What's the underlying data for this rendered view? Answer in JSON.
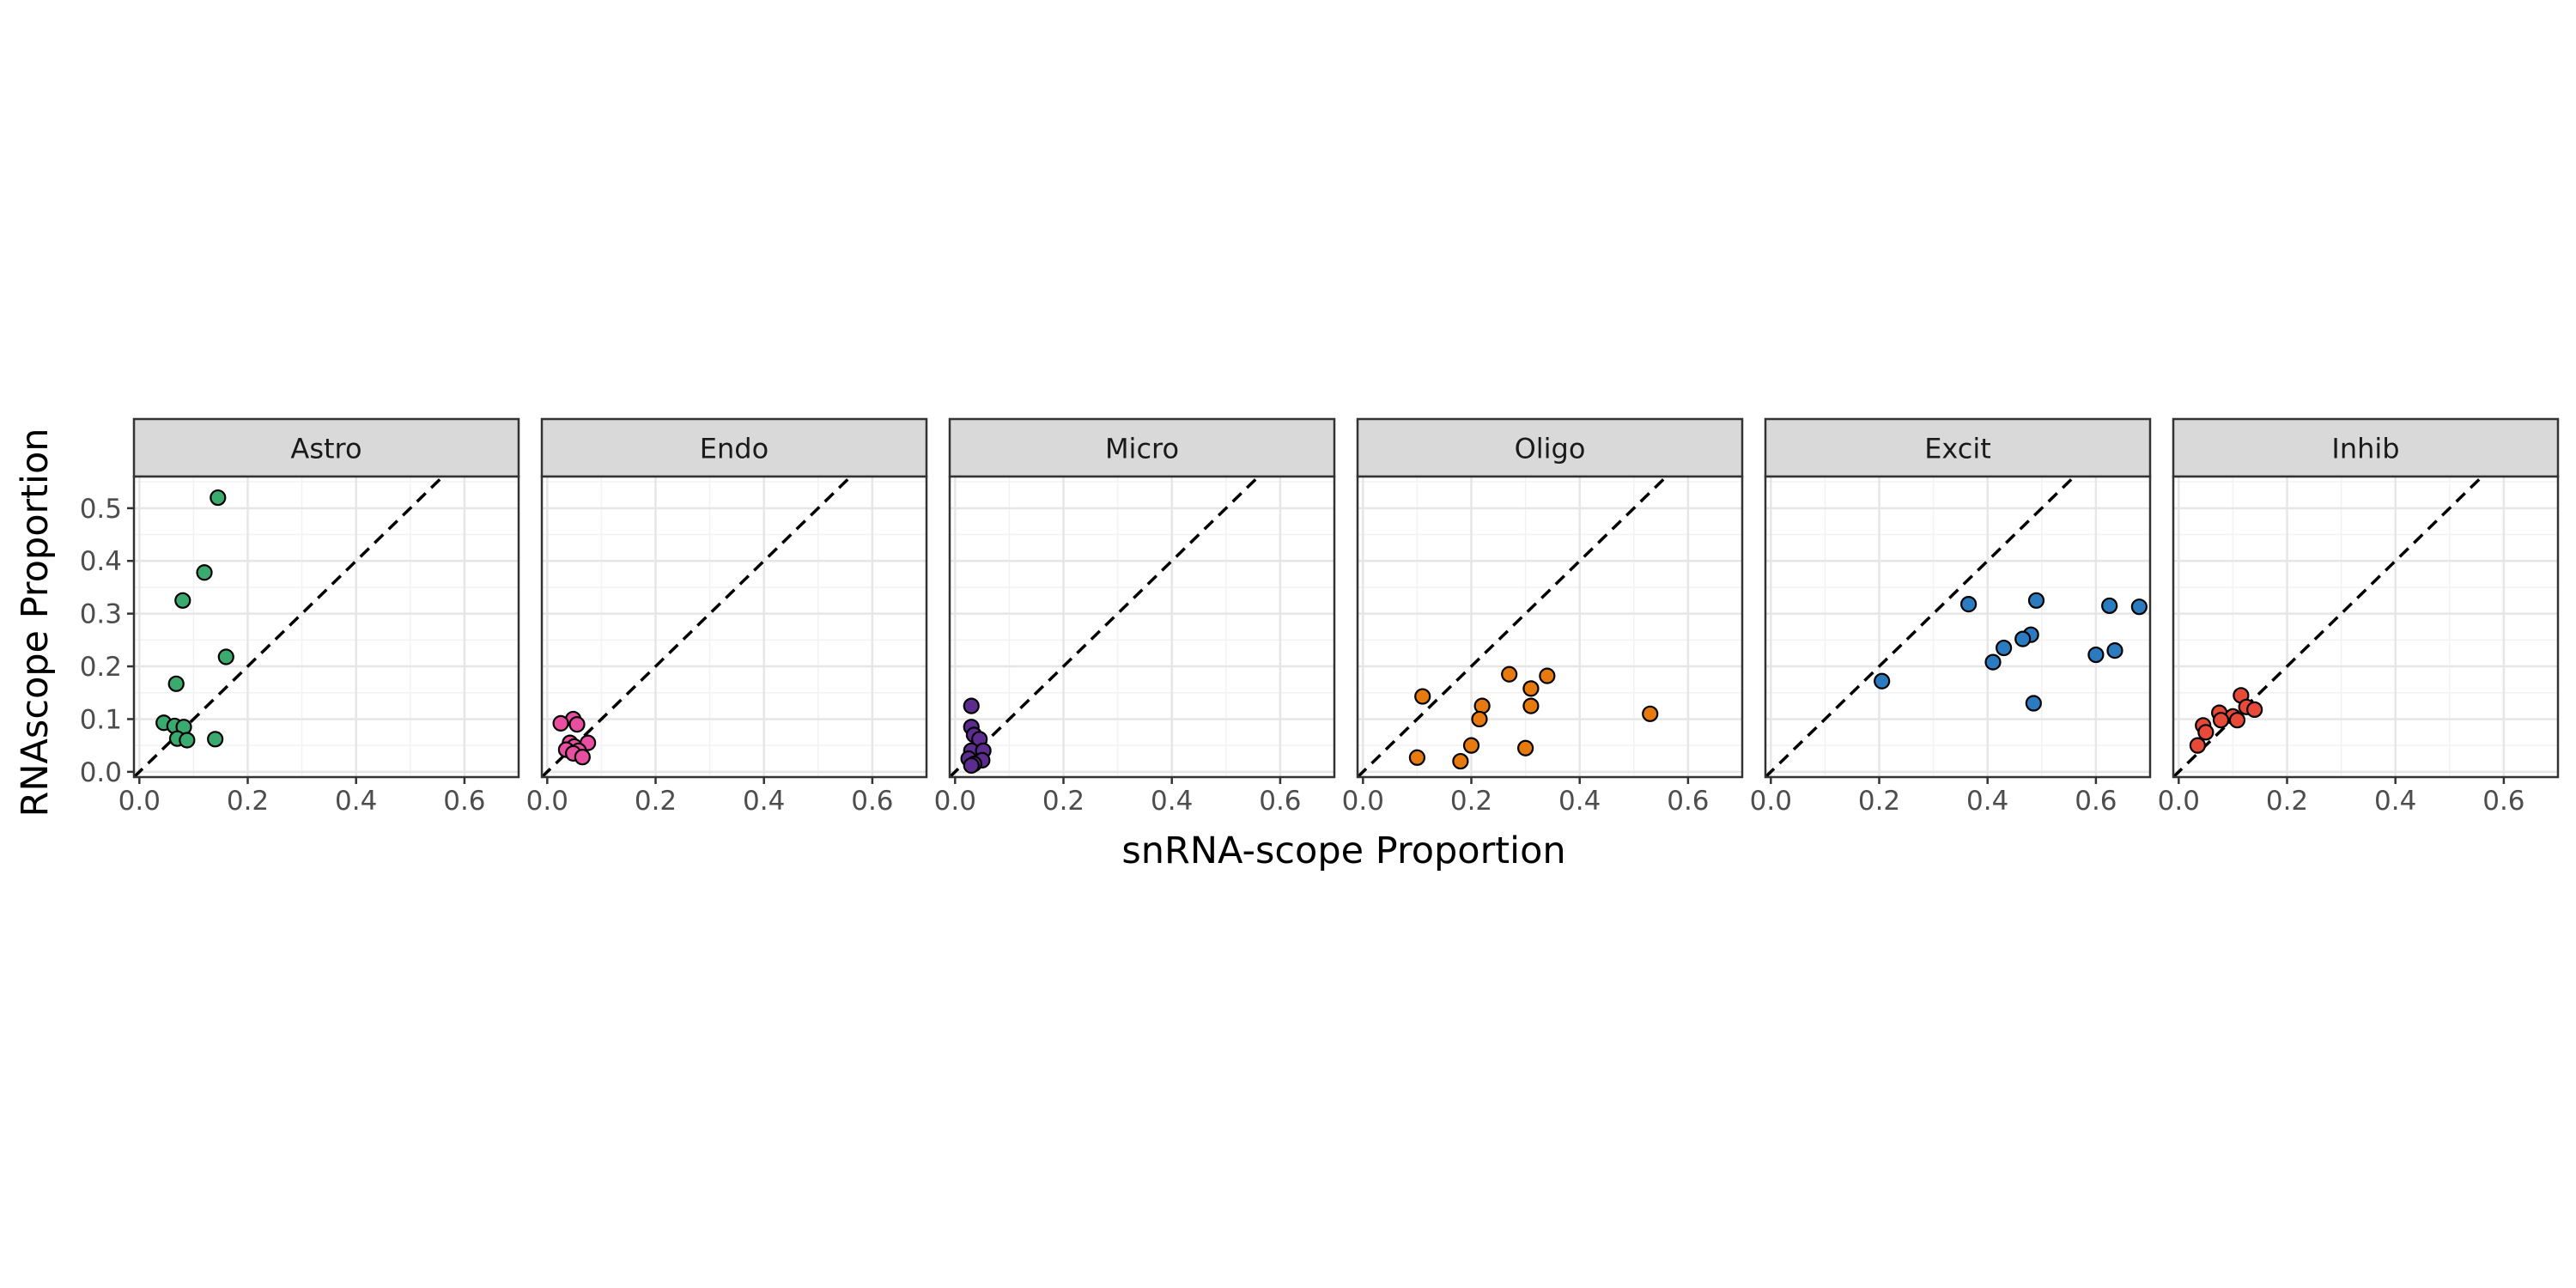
{
  "chart_data": {
    "type": "scatter",
    "xlabel": "snRNA-scope Proportion",
    "ylabel": "RNAscope Proportion",
    "xlim": [
      -0.01,
      0.7
    ],
    "ylim": [
      -0.01,
      0.56
    ],
    "x_ticks": [
      0.0,
      0.2,
      0.4,
      0.6
    ],
    "x_tick_labels": [
      "0.0",
      "0.2",
      "0.4",
      "0.6"
    ],
    "y_ticks": [
      0.0,
      0.1,
      0.2,
      0.3,
      0.4,
      0.5
    ],
    "y_tick_labels": [
      "0.0",
      "0.1",
      "0.2",
      "0.3",
      "0.4",
      "0.5"
    ],
    "grid": true,
    "reference_line": "y = x (dashed)",
    "panels": [
      {
        "name": "Astro",
        "color": "#3aaa6e",
        "points": [
          [
            0.145,
            0.52
          ],
          [
            0.12,
            0.378
          ],
          [
            0.08,
            0.325
          ],
          [
            0.16,
            0.218
          ],
          [
            0.068,
            0.167
          ],
          [
            0.045,
            0.093
          ],
          [
            0.065,
            0.087
          ],
          [
            0.082,
            0.085
          ],
          [
            0.07,
            0.063
          ],
          [
            0.088,
            0.06
          ],
          [
            0.14,
            0.062
          ]
        ]
      },
      {
        "name": "Endo",
        "color": "#e84fa0",
        "points": [
          [
            0.048,
            0.1
          ],
          [
            0.025,
            0.092
          ],
          [
            0.055,
            0.09
          ],
          [
            0.042,
            0.055
          ],
          [
            0.05,
            0.048
          ],
          [
            0.075,
            0.055
          ],
          [
            0.035,
            0.042
          ],
          [
            0.058,
            0.04
          ],
          [
            0.048,
            0.035
          ],
          [
            0.065,
            0.028
          ]
        ]
      },
      {
        "name": "Micro",
        "color": "#5c2c8f",
        "points": [
          [
            0.03,
            0.125
          ],
          [
            0.03,
            0.085
          ],
          [
            0.035,
            0.07
          ],
          [
            0.045,
            0.062
          ],
          [
            0.03,
            0.04
          ],
          [
            0.052,
            0.04
          ],
          [
            0.025,
            0.025
          ],
          [
            0.05,
            0.022
          ],
          [
            0.035,
            0.015
          ],
          [
            0.03,
            0.012
          ]
        ]
      },
      {
        "name": "Oligo",
        "color": "#e67a0f",
        "points": [
          [
            0.11,
            0.143
          ],
          [
            0.27,
            0.185
          ],
          [
            0.34,
            0.182
          ],
          [
            0.31,
            0.158
          ],
          [
            0.22,
            0.125
          ],
          [
            0.31,
            0.125
          ],
          [
            0.53,
            0.11
          ],
          [
            0.215,
            0.1
          ],
          [
            0.2,
            0.05
          ],
          [
            0.3,
            0.045
          ],
          [
            0.1,
            0.027
          ],
          [
            0.18,
            0.02
          ]
        ]
      },
      {
        "name": "Excit",
        "color": "#2a7bbf",
        "points": [
          [
            0.205,
            0.172
          ],
          [
            0.365,
            0.318
          ],
          [
            0.49,
            0.325
          ],
          [
            0.625,
            0.315
          ],
          [
            0.68,
            0.313
          ],
          [
            0.48,
            0.26
          ],
          [
            0.465,
            0.252
          ],
          [
            0.43,
            0.235
          ],
          [
            0.41,
            0.208
          ],
          [
            0.6,
            0.222
          ],
          [
            0.635,
            0.23
          ],
          [
            0.485,
            0.13
          ]
        ]
      },
      {
        "name": "Inhib",
        "color": "#e84a3a",
        "points": [
          [
            0.115,
            0.145
          ],
          [
            0.075,
            0.112
          ],
          [
            0.125,
            0.123
          ],
          [
            0.14,
            0.118
          ],
          [
            0.1,
            0.105
          ],
          [
            0.078,
            0.098
          ],
          [
            0.045,
            0.088
          ],
          [
            0.108,
            0.098
          ],
          [
            0.05,
            0.075
          ],
          [
            0.035,
            0.05
          ]
        ]
      }
    ]
  }
}
